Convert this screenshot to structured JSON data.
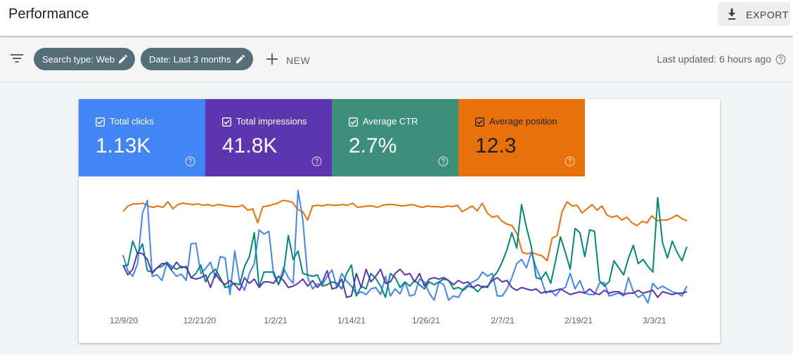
{
  "header": {
    "title": "Performance",
    "export_label": "EXPORT"
  },
  "toolbar": {
    "chips": [
      {
        "label": "Search type: Web"
      },
      {
        "label": "Date: Last 3 months"
      }
    ],
    "new_label": "NEW",
    "last_updated": "Last updated: 6 hours ago"
  },
  "metrics": [
    {
      "label": "Total clicks",
      "value": "1.13K",
      "color": "#4285f4"
    },
    {
      "label": "Total impressions",
      "value": "41.8K",
      "color": "#5e35b1"
    },
    {
      "label": "Average CTR",
      "value": "2.7%",
      "color": "#00897b"
    },
    {
      "label": "Average position",
      "value": "12.3",
      "color": "#e8710a"
    }
  ],
  "chart_data": {
    "type": "line",
    "x_tick_labels": [
      "12/9/20",
      "12/21/20",
      "1/2/21",
      "1/14/21",
      "1/26/21",
      "2/7/21",
      "2/19/21",
      "3/3/21"
    ],
    "grid": false,
    "legend": "none",
    "series": [
      {
        "metric": "Average position",
        "color": "#e8710a",
        "values": [
          30,
          22,
          19,
          19,
          18,
          22,
          24,
          22,
          24,
          16,
          26,
          20,
          18,
          19,
          20,
          19,
          21,
          20,
          22,
          20,
          21,
          22,
          23,
          23,
          21,
          28,
          26,
          46,
          23,
          22,
          20,
          18,
          14,
          15,
          17,
          27,
          30,
          42,
          22,
          21,
          22,
          20,
          21,
          21,
          20,
          21,
          18,
          24,
          23,
          22,
          22,
          24,
          21,
          20,
          20,
          21,
          22,
          21,
          20,
          22,
          24,
          22,
          23,
          23,
          24,
          22,
          23,
          21,
          30,
          26,
          22,
          29,
          18,
          32,
          38,
          36,
          44,
          48,
          50,
          62,
          88,
          90,
          88,
          91,
          93,
          100,
          68,
          64,
          30,
          16,
          22,
          21,
          32,
          26,
          20,
          28,
          22,
          35,
          38,
          36,
          42,
          38,
          46,
          50,
          44,
          46,
          36,
          43,
          42,
          42,
          39,
          35,
          40,
          43
        ]
      },
      {
        "metric": "Total clicks",
        "color": "#4285f4",
        "values": [
          92,
          114,
          122,
          104,
          32,
          14,
          122,
          120,
          128,
          104,
          114,
          122,
          119,
          128,
          76,
          75,
          118,
          111,
          102,
          124,
          94,
          96,
          148,
          86,
          130,
          142,
          118,
          104,
          56,
          62,
          58,
          120,
          134,
          110,
          124,
          132,
          0,
          42,
          124,
          140,
          133,
          134,
          122,
          113,
          138,
          118,
          129,
          136,
          148,
          144,
          148,
          140,
          138,
          148,
          122,
          150,
          140,
          147,
          130,
          150,
          148,
          126,
          130,
          146,
          156,
          130,
          134,
          156,
          150,
          152,
          140,
          134,
          130,
          126,
          116,
          122,
          118,
          150,
          150,
          140,
          124,
          104,
          98,
          110,
          88,
          110,
          126,
          146,
          142,
          150,
          141,
          138,
          118,
          140,
          128,
          146,
          148,
          148,
          132,
          131,
          150,
          148,
          146,
          150,
          124,
          144,
          152,
          148,
          160,
          132,
          140,
          136,
          140,
          144,
          146,
          150,
          136
        ]
      },
      {
        "metric": "Average CTR",
        "color": "#00897b",
        "values": [
          108,
          106,
          72,
          90,
          76,
          114,
          116,
          110,
          108,
          102,
          108,
          112,
          108,
          110,
          124,
          118,
          106,
          130,
          118,
          112,
          124,
          138,
          136,
          132,
          134,
          108,
          94,
          60,
          138,
          116,
          116,
          116,
          134,
          118,
          64,
          98,
          86,
          118,
          120,
          122,
          120,
          136,
          134,
          130,
          132,
          140,
          118,
          106,
          150,
          136,
          140,
          118,
          125,
          136,
          152,
          118,
          124,
          138,
          130,
          136,
          128,
          134,
          140,
          130,
          134,
          130,
          126,
          128,
          140,
          138,
          142,
          136,
          138,
          144,
          136,
          138,
          124,
          116,
          102,
          84,
          60,
          82,
          20,
          52,
          80,
          124,
          126,
          116,
          132,
          100,
          66,
          88,
          112,
          54,
          60,
          94,
          56,
          58,
          128,
          136,
          130,
          100,
          110,
          120,
          96,
          78,
          104,
          98,
          108,
          116,
          10,
          74,
          96,
          72,
          88,
          100,
          80
        ]
      },
      {
        "metric": "Total impressions",
        "color": "#5e35b1",
        "values": [
          106,
          120,
          112,
          88,
          90,
          98,
          118,
          110,
          104,
          104,
          112,
          102,
          110,
          108,
          124,
          126,
          124,
          120,
          138,
          118,
          128,
          134,
          128,
          134,
          142,
          124,
          132,
          126,
          138,
          130,
          130,
          132,
          122,
          128,
          138,
          136,
          132,
          126,
          136,
          128,
          138,
          130,
          114,
          140,
          138,
          126,
          152,
          150,
          118,
          138,
          112,
          130,
          122,
          112,
          132,
          130,
          118,
          112,
          120,
          118,
          130,
          118,
          136,
          126,
          124,
          126,
          124,
          128,
          134,
          128,
          132,
          130,
          138,
          134,
          138,
          136,
          128,
          124,
          130,
          128,
          138,
          142,
          138,
          140,
          142,
          140,
          146,
          144,
          144,
          142,
          140,
          144,
          148,
          146,
          144,
          146,
          140,
          146,
          148,
          142,
          146,
          144,
          144,
          148,
          146,
          146,
          142,
          146,
          144,
          142,
          152,
          144,
          146,
          148,
          146,
          146,
          144
        ]
      }
    ]
  }
}
